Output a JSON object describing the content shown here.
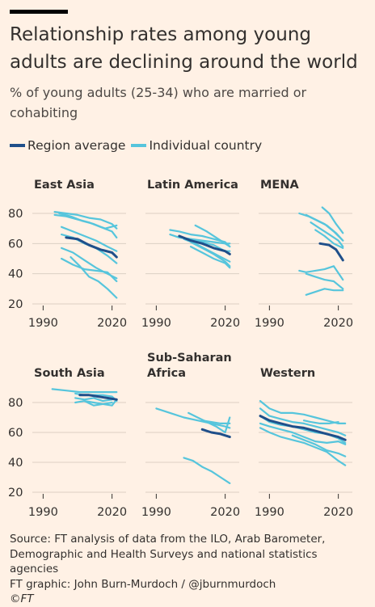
{
  "title": "Relationship rates among young adults are declining around the world",
  "subtitle": "% of young adults (25-34) who are married or cohabiting",
  "legend": {
    "region": "Region average",
    "country": "Individual country"
  },
  "colors": {
    "region": "#1f4f8a",
    "country": "#56c5dc",
    "text": "#33302e",
    "grid": "#dcd0c4",
    "background": "#fff1e5"
  },
  "footer": {
    "source": "Source: FT analysis of data from the ILO, Arab Barometer, Demographic and Health Surveys and national statistics agencies",
    "credit": "FT graphic: John Burn-Murdoch / @jburnmurdoch",
    "logo": "©FT"
  },
  "chart_data": [
    {
      "type": "line",
      "title": "East Asia",
      "ylim": [
        20,
        80
      ],
      "xlim": [
        1986,
        2024
      ],
      "yticks": [
        20,
        40,
        60,
        80
      ],
      "xticks": [
        1990,
        2020
      ],
      "series": [
        {
          "kind": "country",
          "x": [
            1995,
            2000,
            2005,
            2010,
            2015,
            2020,
            2022
          ],
          "y": [
            81,
            80,
            79,
            77,
            76,
            73,
            70
          ]
        },
        {
          "kind": "country",
          "x": [
            1995,
            2000,
            2005,
            2010,
            2015,
            2020,
            2022
          ],
          "y": [
            79,
            78,
            76,
            74,
            71,
            68,
            64
          ]
        },
        {
          "kind": "country",
          "x": [
            1997,
            2002,
            2007,
            2012,
            2017,
            2022
          ],
          "y": [
            80,
            78,
            75,
            73,
            70,
            72
          ]
        },
        {
          "kind": "country",
          "x": [
            1998,
            2003,
            2008,
            2013,
            2018,
            2022
          ],
          "y": [
            71,
            68,
            65,
            62,
            58,
            55
          ]
        },
        {
          "kind": "country",
          "x": [
            1998,
            2003,
            2008,
            2013,
            2018,
            2022
          ],
          "y": [
            66,
            64,
            60,
            57,
            52,
            47
          ]
        },
        {
          "kind": "country",
          "x": [
            1998,
            2003,
            2008,
            2013,
            2018,
            2022
          ],
          "y": [
            57,
            54,
            49,
            44,
            40,
            37
          ]
        },
        {
          "kind": "country",
          "x": [
            1998,
            2003,
            2008,
            2013,
            2018,
            2022
          ],
          "y": [
            50,
            46,
            43,
            42,
            41,
            35
          ]
        },
        {
          "kind": "country",
          "x": [
            2002,
            2006,
            2010,
            2014,
            2018,
            2022
          ],
          "y": [
            51,
            45,
            38,
            35,
            30,
            24
          ]
        },
        {
          "kind": "region",
          "x": [
            2000,
            2005,
            2010,
            2015,
            2020,
            2022
          ],
          "y": [
            64,
            63,
            59,
            56,
            54,
            51
          ]
        }
      ]
    },
    {
      "type": "line",
      "title": "Latin America",
      "ylim": [
        20,
        80
      ],
      "xlim": [
        1986,
        2024
      ],
      "yticks": [
        20,
        40,
        60,
        80
      ],
      "xticks": [
        1990,
        2020
      ],
      "series": [
        {
          "kind": "country",
          "x": [
            2007,
            2012,
            2017,
            2022
          ],
          "y": [
            72,
            68,
            63,
            58
          ]
        },
        {
          "kind": "country",
          "x": [
            1996,
            2000,
            2005,
            2010,
            2015,
            2020,
            2022
          ],
          "y": [
            69,
            68,
            66,
            65,
            63,
            61,
            58
          ]
        },
        {
          "kind": "country",
          "x": [
            1996,
            2000,
            2005,
            2010,
            2015,
            2020,
            2022
          ],
          "y": [
            66,
            64,
            63,
            62,
            61,
            60,
            60
          ]
        },
        {
          "kind": "country",
          "x": [
            2000,
            2005,
            2010,
            2015,
            2020,
            2022
          ],
          "y": [
            64,
            63,
            61,
            59,
            55,
            55
          ]
        },
        {
          "kind": "country",
          "x": [
            2002,
            2007,
            2012,
            2017,
            2022
          ],
          "y": [
            63,
            60,
            56,
            52,
            48
          ]
        },
        {
          "kind": "country",
          "x": [
            2005,
            2010,
            2015,
            2020,
            2022
          ],
          "y": [
            61,
            57,
            53,
            48,
            45
          ]
        },
        {
          "kind": "country",
          "x": [
            2005,
            2010,
            2015,
            2020,
            2022
          ],
          "y": [
            58,
            54,
            50,
            47,
            44
          ]
        },
        {
          "kind": "region",
          "x": [
            2000,
            2005,
            2010,
            2015,
            2020,
            2022
          ],
          "y": [
            65,
            62,
            60,
            57,
            55,
            53
          ]
        }
      ]
    },
    {
      "type": "line",
      "title": "MENA",
      "ylim": [
        20,
        80
      ],
      "xlim": [
        1986,
        2024
      ],
      "yticks": [
        20,
        40,
        60,
        80
      ],
      "xticks": [
        1990,
        2020
      ],
      "series": [
        {
          "kind": "country",
          "x": [
            2013,
            2016,
            2019,
            2022
          ],
          "y": [
            84,
            80,
            73,
            67
          ]
        },
        {
          "kind": "country",
          "x": [
            2003,
            2007,
            2011,
            2015,
            2019,
            2022
          ],
          "y": [
            80,
            78,
            75,
            72,
            67,
            62
          ]
        },
        {
          "kind": "country",
          "x": [
            2006,
            2010,
            2014,
            2018,
            2022
          ],
          "y": [
            79,
            76,
            73,
            68,
            62
          ]
        },
        {
          "kind": "country",
          "x": [
            2008,
            2012,
            2016,
            2020,
            2022
          ],
          "y": [
            74,
            70,
            66,
            62,
            58
          ]
        },
        {
          "kind": "country",
          "x": [
            2010,
            2014,
            2018,
            2022
          ],
          "y": [
            69,
            65,
            60,
            57
          ]
        },
        {
          "kind": "country",
          "x": [
            2003,
            2006,
            2010,
            2014,
            2018,
            2022
          ],
          "y": [
            42,
            41,
            42,
            43,
            45,
            36
          ]
        },
        {
          "kind": "country",
          "x": [
            2006,
            2010,
            2014,
            2018,
            2022
          ],
          "y": [
            40,
            38,
            36,
            35,
            30
          ]
        },
        {
          "kind": "country",
          "x": [
            2006,
            2010,
            2014,
            2018,
            2022
          ],
          "y": [
            26,
            28,
            30,
            29,
            29
          ]
        },
        {
          "kind": "region",
          "x": [
            2012,
            2016,
            2019,
            2022
          ],
          "y": [
            60,
            59,
            56,
            49
          ]
        }
      ]
    },
    {
      "type": "line",
      "title": "South Asia",
      "ylim": [
        20,
        80
      ],
      "xlim": [
        1986,
        2024
      ],
      "yticks": [
        20,
        40,
        60,
        80
      ],
      "xticks": [
        1990,
        2020
      ],
      "series": [
        {
          "kind": "country",
          "x": [
            1994,
            2000,
            2006,
            2012,
            2018,
            2022
          ],
          "y": [
            89,
            88,
            87,
            87,
            87,
            87
          ]
        },
        {
          "kind": "country",
          "x": [
            2004,
            2008,
            2012,
            2016,
            2020,
            2022
          ],
          "y": [
            86,
            85,
            85,
            85,
            84,
            81
          ]
        },
        {
          "kind": "country",
          "x": [
            2004,
            2008,
            2012,
            2016,
            2020
          ],
          "y": [
            83,
            82,
            83,
            81,
            82
          ]
        },
        {
          "kind": "country",
          "x": [
            2004,
            2008,
            2012,
            2016,
            2020,
            2022
          ],
          "y": [
            80,
            81,
            80,
            79,
            78,
            82
          ]
        },
        {
          "kind": "country",
          "x": [
            2008,
            2012,
            2016,
            2020
          ],
          "y": [
            81,
            78,
            79,
            80
          ]
        },
        {
          "kind": "region",
          "x": [
            2006,
            2010,
            2014,
            2018,
            2022
          ],
          "y": [
            85,
            85,
            84,
            83,
            82
          ]
        }
      ]
    },
    {
      "type": "line",
      "title": "Sub-Saharan Africa",
      "ylim": [
        20,
        80
      ],
      "xlim": [
        1986,
        2024
      ],
      "yticks": [
        20,
        40,
        60,
        80
      ],
      "xticks": [
        1990,
        2020
      ],
      "series": [
        {
          "kind": "country",
          "x": [
            1990,
            1996,
            2002,
            2008,
            2014,
            2020,
            2022
          ],
          "y": [
            76,
            73,
            70,
            68,
            66,
            64,
            63
          ]
        },
        {
          "kind": "country",
          "x": [
            2004,
            2008,
            2012,
            2016,
            2020,
            2022
          ],
          "y": [
            73,
            70,
            67,
            64,
            60,
            70
          ]
        },
        {
          "kind": "country",
          "x": [
            2010,
            2014,
            2018,
            2022
          ],
          "y": [
            68,
            67,
            66,
            66
          ]
        },
        {
          "kind": "country",
          "x": [
            2002,
            2006,
            2010,
            2014,
            2018,
            2022
          ],
          "y": [
            43,
            41,
            37,
            34,
            30,
            26
          ]
        },
        {
          "kind": "region",
          "x": [
            2010,
            2014,
            2018,
            2022
          ],
          "y": [
            62,
            60,
            59,
            57
          ]
        }
      ]
    },
    {
      "type": "line",
      "title": "Western",
      "ylim": [
        20,
        80
      ],
      "xlim": [
        1986,
        2024
      ],
      "yticks": [
        20,
        40,
        60,
        80
      ],
      "xticks": [
        1990,
        2020
      ],
      "series": [
        {
          "kind": "country",
          "x": [
            1986,
            1990,
            1995,
            2000,
            2005,
            2010,
            2015,
            2020,
            2023
          ],
          "y": [
            81,
            76,
            73,
            73,
            72,
            70,
            68,
            66,
            66
          ]
        },
        {
          "kind": "country",
          "x": [
            1986,
            1990,
            1995,
            2000,
            2005,
            2010,
            2015,
            2020,
            2023
          ],
          "y": [
            76,
            71,
            69,
            67,
            66,
            64,
            62,
            60,
            58
          ]
        },
        {
          "kind": "country",
          "x": [
            1986,
            1990,
            1995,
            2000,
            2005,
            2010,
            2015,
            2020,
            2023
          ],
          "y": [
            71,
            67,
            65,
            64,
            62,
            60,
            59,
            56,
            53
          ]
        },
        {
          "kind": "country",
          "x": [
            1986,
            1990,
            1995,
            2000,
            2005,
            2010,
            2015,
            2020,
            2023
          ],
          "y": [
            66,
            64,
            62,
            60,
            57,
            54,
            53,
            54,
            52
          ]
        },
        {
          "kind": "country",
          "x": [
            1986,
            1990,
            1995,
            2000,
            2005,
            2010,
            2015,
            2020,
            2023
          ],
          "y": [
            63,
            60,
            57,
            55,
            53,
            50,
            47,
            41,
            38
          ]
        },
        {
          "kind": "country",
          "x": [
            2000,
            2005,
            2010,
            2015,
            2020,
            2023
          ],
          "y": [
            58,
            55,
            52,
            48,
            46,
            44
          ]
        },
        {
          "kind": "country",
          "x": [
            2005,
            2008,
            2012,
            2016,
            2020
          ],
          "y": [
            68,
            67,
            66,
            66,
            67
          ]
        },
        {
          "kind": "region",
          "x": [
            1986,
            1990,
            1995,
            2000,
            2005,
            2010,
            2015,
            2020,
            2023
          ],
          "y": [
            71,
            68,
            66,
            64,
            63,
            61,
            59,
            57,
            55
          ]
        }
      ]
    }
  ]
}
